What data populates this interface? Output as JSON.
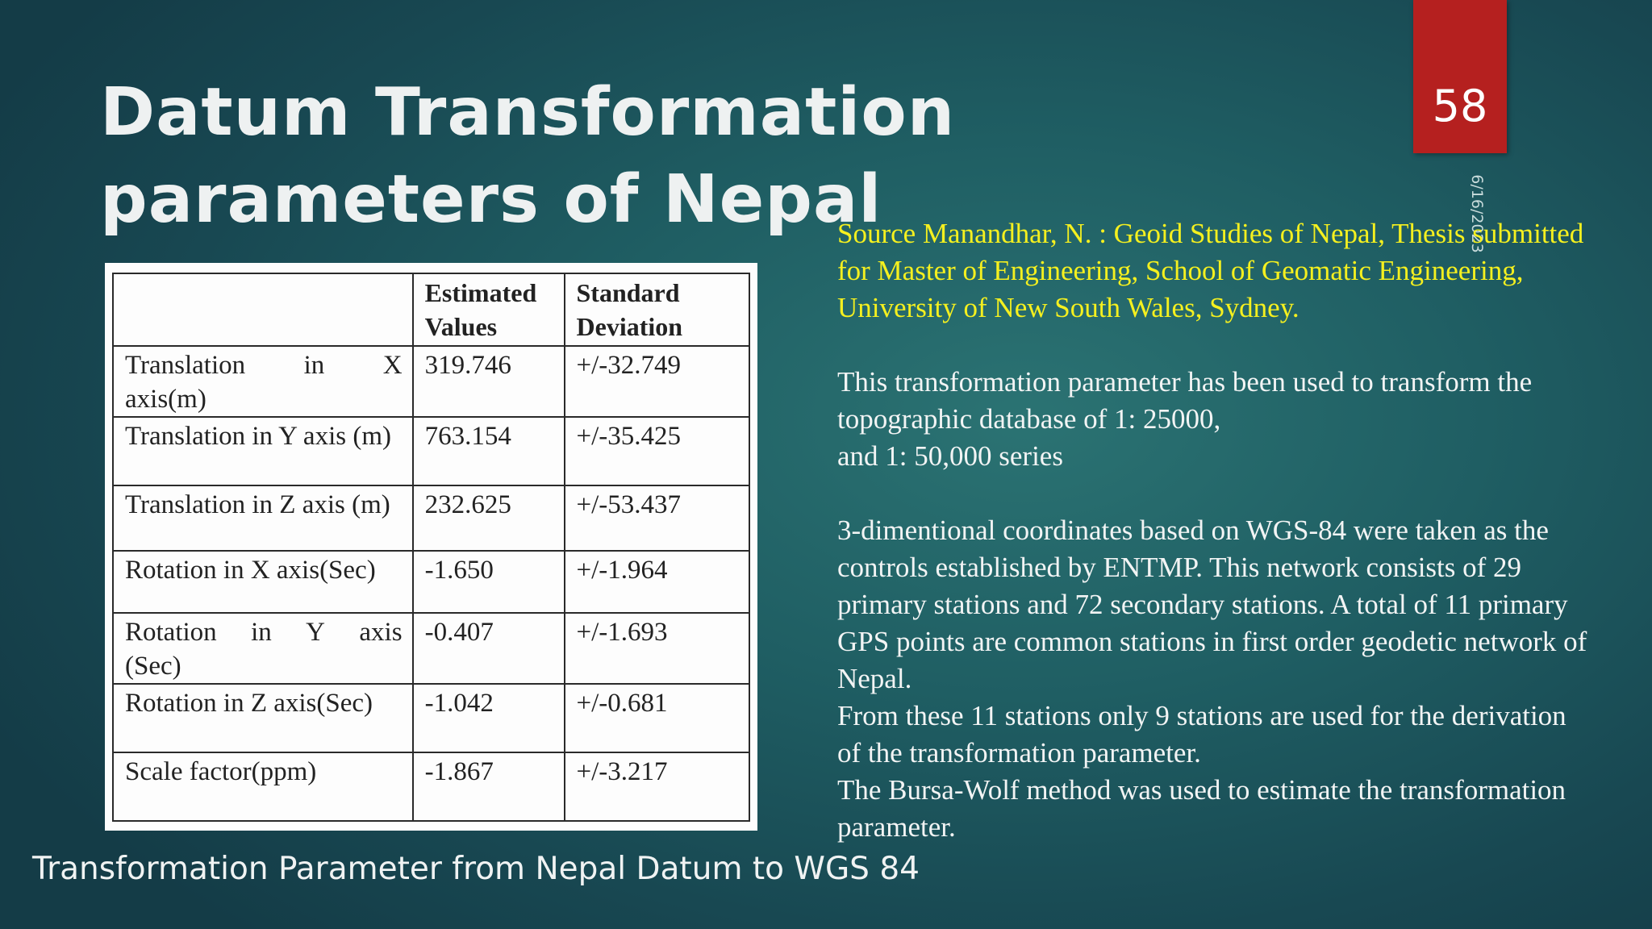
{
  "slide": {
    "title": "Datum Transformation parameters of Nepal",
    "number": "58",
    "date": "6/16/2023"
  },
  "table": {
    "headers": [
      "",
      "Estimated Values",
      "Standard Deviation"
    ],
    "rows": [
      {
        "param_words": [
          "Translation",
          "in",
          "X"
        ],
        "param_tail": "axis(m)",
        "estimated": "319.746",
        "sd": "+/-32.749"
      },
      {
        "param": "Translation in Y axis (m)",
        "estimated": "763.154",
        "sd": "+/-35.425"
      },
      {
        "param": "Translation in Z axis (m)",
        "estimated": "232.625",
        "sd": "+/-53.437"
      },
      {
        "param": "Rotation in X axis(Sec)",
        "estimated": "-1.650",
        "sd": "+/-1.964"
      },
      {
        "param_words": [
          "Rotation",
          "in",
          "Y",
          "axis"
        ],
        "param_tail": "(Sec)",
        "estimated": "-0.407",
        "sd": "+/-1.693"
      },
      {
        "param": "Rotation in Z axis(Sec)",
        "estimated": "-1.042",
        "sd": "+/-0.681"
      },
      {
        "param": "Scale factor(ppm)",
        "estimated": "-1.867",
        "sd": "+/-3.217"
      }
    ]
  },
  "right_text": {
    "source": "Source Manandhar, N. : Geoid Studies of Nepal, Thesis submitted for Master of Engineering, School of Geomatic Engineering, University of New South Wales, Sydney.",
    "para1_line1": " This transformation parameter has been used to transform the topographic database of 1: 25000,",
    "para1_line2": "and 1: 50,000 series",
    "para2": "3-dimentional coordinates based on WGS-84 were taken as the controls established by ENTMP. This network consists of 29 primary stations and 72 secondary stations. A total of 11 primary GPS points are common stations in first order geodetic network of Nepal.",
    "para3": "From these 11 stations only 9 stations are used for the derivation of the transformation parameter.",
    "para4": "The Bursa-Wolf method was used to estimate the transformation parameter."
  },
  "caption": "Transformation Parameter from Nepal Datum to WGS 84",
  "colors": {
    "background": "#1f5e63",
    "number_box": "#b5201f",
    "source_text": "#f5f01f"
  }
}
